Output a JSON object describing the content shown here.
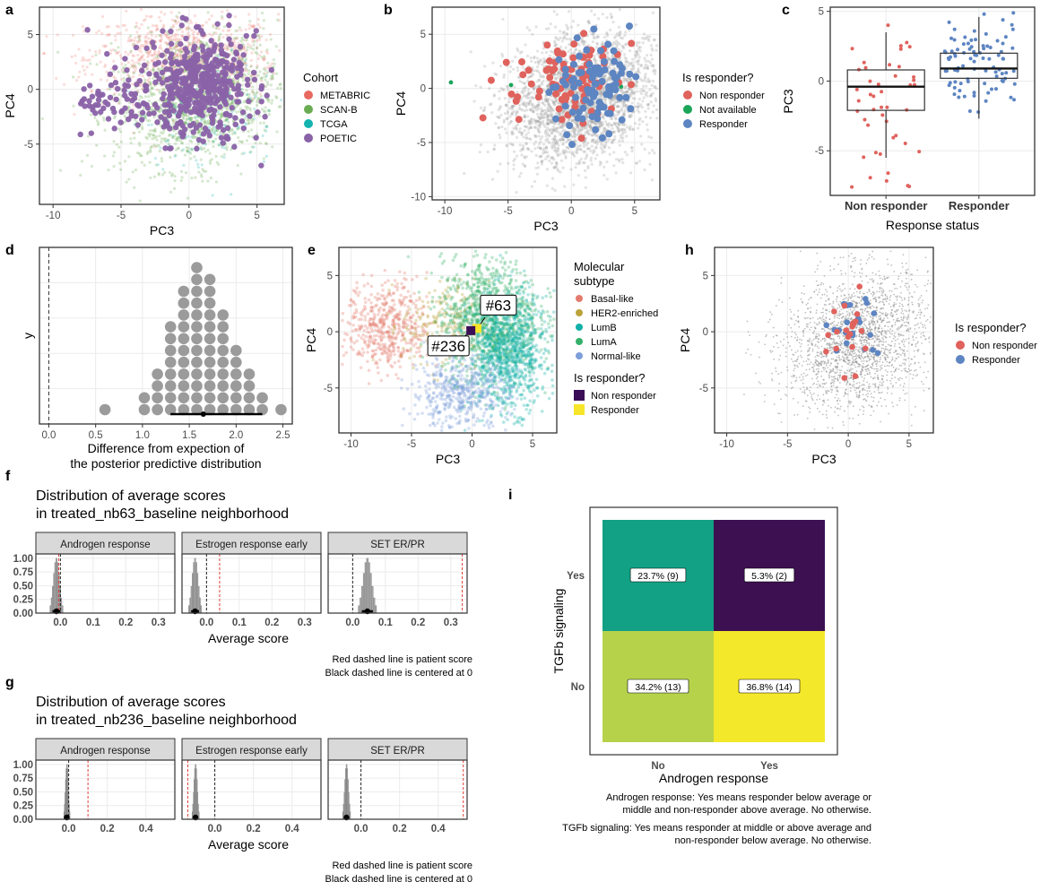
{
  "chart_data": [
    {
      "id": "a",
      "panel_label": "a",
      "type": "scatter",
      "xlabel": "PC3",
      "ylabel": "PC4",
      "xlim": [
        -11,
        7
      ],
      "ylim": [
        -10.5,
        7.5
      ],
      "xticks": [
        "-10",
        "-5",
        "0",
        "5"
      ],
      "yticks": [
        "-5",
        "0",
        "5"
      ],
      "legend_title": "Cohort",
      "legend_position": "right",
      "series": [
        {
          "name": "METABRIC",
          "color": "#e8695f"
        },
        {
          "name": "SCAN-B",
          "color": "#6aac52"
        },
        {
          "name": "TCGA",
          "color": "#13b4b0"
        },
        {
          "name": "POETIC",
          "color": "#8a62a8"
        }
      ]
    },
    {
      "id": "b",
      "panel_label": "b",
      "type": "scatter",
      "xlabel": "PC3",
      "ylabel": "PC4",
      "xlim": [
        -11,
        7
      ],
      "ylim": [
        -10.3,
        7.5
      ],
      "xticks": [
        "-10",
        "-5",
        "0",
        "5"
      ],
      "yticks": [
        "-10",
        "-5",
        "0",
        "5"
      ],
      "legend_title": "Is responder?",
      "legend_position": "right",
      "series": [
        {
          "name": "Non responder",
          "color": "#e0625d"
        },
        {
          "name": "Not available",
          "color": "#1ba55a"
        },
        {
          "name": "Responder",
          "color": "#5d85c2"
        }
      ]
    },
    {
      "id": "c",
      "panel_label": "c",
      "type": "box",
      "xlabel": "Response status",
      "ylabel": "PC3",
      "ylim": [
        -8.2,
        5.3
      ],
      "yticks": [
        "-5",
        "0",
        "5"
      ],
      "categories": [
        "Non responder",
        "Responder"
      ],
      "boxes": [
        {
          "q1": -2.1,
          "median": -0.4,
          "q3": 0.8,
          "lower_whisker": -5.5,
          "upper_whisker": 3.5,
          "color": "#e0625d"
        },
        {
          "q1": 0.2,
          "median": 0.9,
          "q3": 2.0,
          "lower_whisker": -2.7,
          "upper_whisker": 4.6,
          "color": "#5d85c2"
        }
      ]
    },
    {
      "id": "d",
      "panel_label": "d",
      "type": "dotplot",
      "xlabel": "Difference from expection of\nthe posterior predictive distribution",
      "ylabel": "y",
      "xlim": [
        -0.1,
        2.6
      ],
      "xticks": [
        "0.0",
        "0.5",
        "1.0",
        "1.5",
        "2.0",
        "2.5"
      ],
      "bins_x": [
        0.6,
        0.74,
        0.88,
        1.02,
        1.16,
        1.3,
        1.44,
        1.58,
        1.72,
        1.86,
        2.0,
        2.14,
        2.28,
        2.48
      ],
      "bins_count": [
        1,
        0,
        0,
        2,
        4,
        8,
        11,
        13,
        12,
        9,
        6,
        4,
        2,
        1
      ],
      "interval": [
        1.3,
        2.28
      ],
      "point_estimate": 1.65,
      "reference_line": 0
    },
    {
      "id": "e",
      "panel_label": "e",
      "type": "scatter",
      "xlabel": "PC3",
      "ylabel": "PC4",
      "xlim": [
        -11,
        7
      ],
      "ylim": [
        -9,
        7.5
      ],
      "xticks": [
        "-10",
        "-5",
        "0",
        "5"
      ],
      "yticks": [
        "-5",
        "0",
        "5"
      ],
      "legend_title": "Molecular\nsubtype",
      "legend_position": "right",
      "series": [
        {
          "name": "Basal-like",
          "color": "#e37b6e"
        },
        {
          "name": "HER2-enriched",
          "color": "#bba33a"
        },
        {
          "name": "LumB",
          "color": "#13b0a8"
        },
        {
          "name": "LumA",
          "color": "#35b06a"
        },
        {
          "name": "Normal-like",
          "color": "#7d9ed9"
        }
      ],
      "legend2_title": "Is responder?",
      "legend2": [
        {
          "name": "Non responder",
          "color": "#3b0f56"
        },
        {
          "name": "Responder",
          "color": "#f7e529"
        }
      ],
      "annotations": [
        {
          "label": "#63",
          "x": 0.4,
          "y": 0.3
        },
        {
          "label": "#236",
          "x": -0.1,
          "y": 0.1
        }
      ]
    },
    {
      "id": "h",
      "panel_label": "h",
      "type": "scatter",
      "xlabel": "PC3",
      "ylabel": "PC4",
      "xlim": [
        -11,
        7
      ],
      "ylim": [
        -9,
        7.5
      ],
      "xticks": [
        "-10",
        "-5",
        "0",
        "5"
      ],
      "yticks": [
        "-5",
        "0",
        "5"
      ],
      "legend_title": "Is responder?",
      "legend_position": "right",
      "series": [
        {
          "name": "Non responder",
          "color": "#e0625d"
        },
        {
          "name": "Responder",
          "color": "#5d85c2"
        }
      ]
    },
    {
      "id": "f",
      "panel_label": "f",
      "type": "histogram",
      "title": "Distribution of average scores\nin treated_nb63_baseline neighborhood",
      "xlabel": "Average score",
      "xticks": [
        "0.0",
        "0.1",
        "0.2",
        "0.3"
      ],
      "yticks": [
        "0.00",
        "0.25",
        "0.50",
        "0.75",
        "1.00"
      ],
      "xlim": [
        -0.075,
        0.35
      ],
      "ylim": [
        0,
        1.08
      ],
      "facets": [
        {
          "name": "Androgen response",
          "center": -0.012,
          "width": 0.02,
          "patient_score": -0.005
        },
        {
          "name": "Estrogen response early",
          "center": -0.035,
          "width": 0.02,
          "patient_score": 0.04
        },
        {
          "name": "SET ER/PR",
          "center": 0.045,
          "width": 0.028,
          "patient_score": 0.335
        }
      ],
      "notes": [
        "Red dashed line is patient score",
        "Black dashed line is centered at 0"
      ]
    },
    {
      "id": "g",
      "panel_label": "g",
      "type": "histogram",
      "title": "Distribution of average scores\nin treated_nb236_baseline neighborhood",
      "xlabel": "Average score",
      "xticks": [
        "0.0",
        "0.2",
        "0.4"
      ],
      "yticks": [
        "0.00",
        "0.25",
        "0.50",
        "0.75",
        "1.00"
      ],
      "xlim": [
        -0.17,
        0.55
      ],
      "ylim": [
        0,
        1.08
      ],
      "facets": [
        {
          "name": "Androgen response",
          "center": -0.01,
          "width": 0.015,
          "patient_score": 0.1
        },
        {
          "name": "Estrogen response early",
          "center": -0.1,
          "width": 0.018,
          "patient_score": -0.14
        },
        {
          "name": "SET ER/PR",
          "center": -0.075,
          "width": 0.02,
          "patient_score": 0.53
        }
      ],
      "notes": [
        "Red dashed line is patient score",
        "Black dashed line is centered at 0"
      ]
    },
    {
      "id": "i",
      "panel_label": "i",
      "type": "heatmap",
      "xlabel": "Androgen response",
      "ylabel": "TGFb signaling",
      "x_categories": [
        "No",
        "Yes"
      ],
      "y_categories": [
        "Yes",
        "No"
      ],
      "cells": [
        {
          "x": "No",
          "y": "Yes",
          "label": "23.7% (9)",
          "value": 23.7,
          "color": "#12a184"
        },
        {
          "x": "Yes",
          "y": "Yes",
          "label": "5.3% (2)",
          "value": 5.3,
          "color": "#3d1051"
        },
        {
          "x": "No",
          "y": "No",
          "label": "34.2% (13)",
          "value": 34.2,
          "color": "#b6d24b"
        },
        {
          "x": "Yes",
          "y": "No",
          "label": "36.8% (14)",
          "value": 36.8,
          "color": "#f4e82a"
        }
      ],
      "notes": [
        "Androgen response: Yes means responder below average or",
        "middle and non-responder above average. No otherwise.",
        "TGFb signaling: Yes means responder at middle or above average and",
        "non-responder below average. No otherwise."
      ]
    }
  ]
}
